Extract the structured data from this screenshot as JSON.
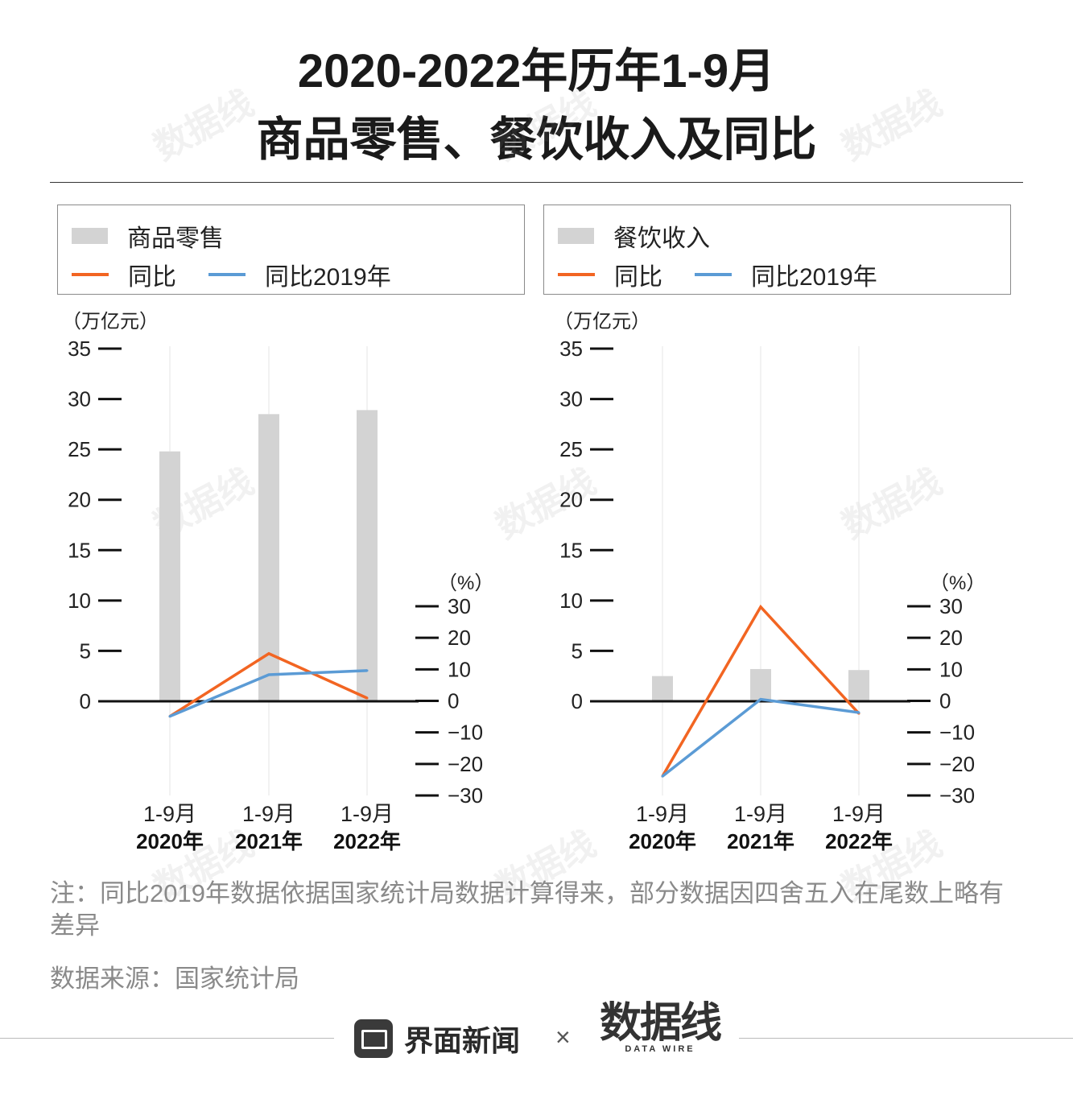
{
  "title": {
    "line1": "2020-2022年历年1-9月",
    "line2": "商品零售、餐饮收入及同比"
  },
  "legends": {
    "left": {
      "bar": "商品零售",
      "yoy": "同比",
      "vs2019": "同比2019年"
    },
    "right": {
      "bar": "餐饮收入",
      "yoy": "同比",
      "vs2019": "同比2019年"
    }
  },
  "colors": {
    "bar": "#d3d3d3",
    "yoy": "#f26522",
    "vs2019": "#5b9bd5",
    "axis": "#111111"
  },
  "chart_data": [
    {
      "type": "bar",
      "categories": [
        "1-9月 2020年",
        "1-9月 2021年",
        "1-9月 2022年"
      ],
      "category_lines": [
        [
          "1-9月",
          "2020年"
        ],
        [
          "1-9月",
          "2021年"
        ],
        [
          "1-9月",
          "2022年"
        ]
      ],
      "ylabel": "（万亿元）",
      "ylim": [
        0,
        35
      ],
      "yticks": [
        0,
        5,
        10,
        15,
        20,
        25,
        30,
        35
      ],
      "y2label": "（%）",
      "y2lim": [
        -30,
        30
      ],
      "y2ticks": [
        30,
        20,
        10,
        0,
        -10,
        -20,
        -30
      ],
      "y2tick_labels": [
        "30",
        "20",
        "10",
        "0",
        "−10",
        "−20",
        "−30"
      ],
      "series": [
        {
          "name": "商品零售",
          "kind": "bar",
          "axis": "left",
          "values": [
            24.8,
            28.5,
            28.9
          ]
        },
        {
          "name": "同比",
          "kind": "line",
          "axis": "right",
          "values": [
            -4.9,
            15.0,
            0.9
          ]
        },
        {
          "name": "同比2019年",
          "kind": "line",
          "axis": "right",
          "values": [
            -4.9,
            8.3,
            9.6
          ]
        }
      ]
    },
    {
      "type": "bar",
      "categories": [
        "1-9月 2020年",
        "1-9月 2021年",
        "1-9月 2022年"
      ],
      "category_lines": [
        [
          "1-9月",
          "2020年"
        ],
        [
          "1-9月",
          "2021年"
        ],
        [
          "1-9月",
          "2022年"
        ]
      ],
      "ylabel": "（万亿元）",
      "ylim": [
        0,
        35
      ],
      "yticks": [
        0,
        5,
        10,
        15,
        20,
        25,
        30,
        35
      ],
      "y2label": "（%）",
      "y2lim": [
        -30,
        30
      ],
      "y2ticks": [
        30,
        20,
        10,
        0,
        -10,
        -20,
        -30
      ],
      "y2tick_labels": [
        "30",
        "20",
        "10",
        "0",
        "−10",
        "−20",
        "−30"
      ],
      "series": [
        {
          "name": "餐饮收入",
          "kind": "bar",
          "axis": "left",
          "values": [
            2.5,
            3.2,
            3.1
          ]
        },
        {
          "name": "同比",
          "kind": "line",
          "axis": "right",
          "values": [
            -23.9,
            29.8,
            -4.0
          ]
        },
        {
          "name": "同比2019年",
          "kind": "line",
          "axis": "right",
          "values": [
            -23.9,
            0.5,
            -3.7
          ]
        }
      ]
    }
  ],
  "notes": {
    "note": "注：同比2019年数据依据国家统计局数据计算得来，部分数据因四舍五入在尾数上略有差异",
    "source": "数据来源：国家统计局"
  },
  "footer": {
    "brand": "界面新闻",
    "times": "×",
    "dw_main": "数据线",
    "dw_sub": "DATA WIRE"
  },
  "watermark": {
    "text": "数据线"
  }
}
